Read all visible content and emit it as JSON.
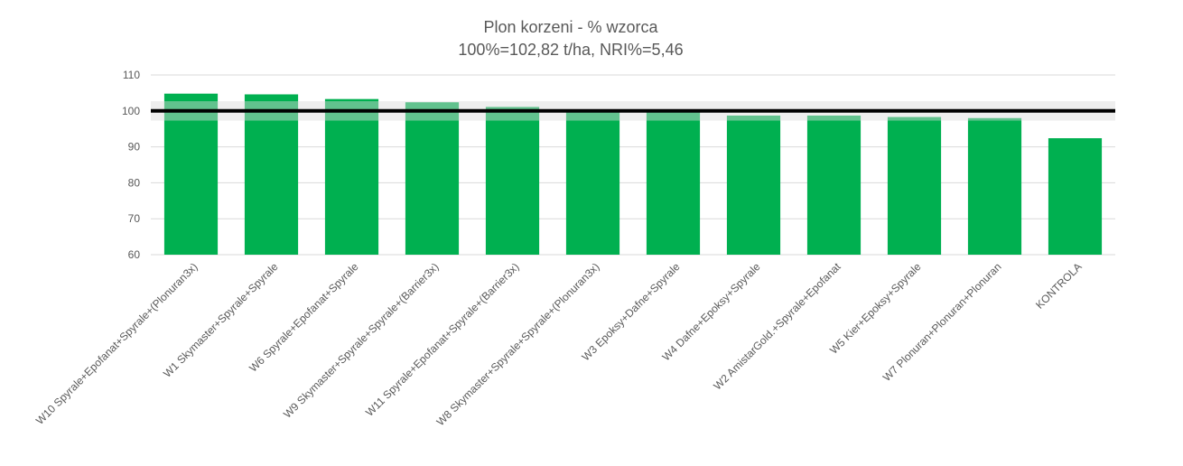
{
  "chart_data": {
    "type": "bar",
    "title": "Plon korzeni - % wzorca",
    "subtitle": "100%=102,82 t/ha, NRI%=5,46",
    "xlabel": "",
    "ylabel": "",
    "ylim": [
      60,
      110
    ],
    "yticks": [
      60,
      70,
      80,
      90,
      100,
      110
    ],
    "grid": true,
    "legend": "none",
    "categories": [
      "W10 Spyrale+Epofanat+Spyrale+(Plonuran3x)",
      "W1 Skymaster+Spyrale+Spyrale",
      "W6 Spyrale+Epofanat+Spyrale",
      "W9 Skymaster+Spyrale+Spyrale+(Barrier3x)",
      "W11 Spyrale+Epofanat+Spyrale+(Barrier3x)",
      "W8 Skymaster+Spyrale+Spyrale+(Plonuran3x)",
      "W3 Epoksy+Dafne+Spyrale",
      "W4 Dafne+Epoksy+Spyrale",
      "W2 AmistarGold.+Spyrale+Epofanat",
      "W5 Kier+Epoksy+Spyrale",
      "W7 Plonuran+Plonuran+Plonuran",
      "KONTROLA"
    ],
    "series": [
      {
        "values": [
          104.8,
          104.6,
          103.3,
          102.4,
          101.1,
          100.0,
          99.7,
          98.7,
          98.7,
          98.3,
          98.0,
          92.4
        ],
        "color": "#00B050"
      }
    ],
    "reference_line": {
      "value": 100,
      "color": "#000000",
      "band": [
        97.3,
        102.7
      ],
      "band_color": "#D9D9D9"
    },
    "colors": {
      "bar": "#00B050",
      "grid": "#D9D9D9",
      "text": "#595959",
      "reference": "#000000"
    }
  }
}
